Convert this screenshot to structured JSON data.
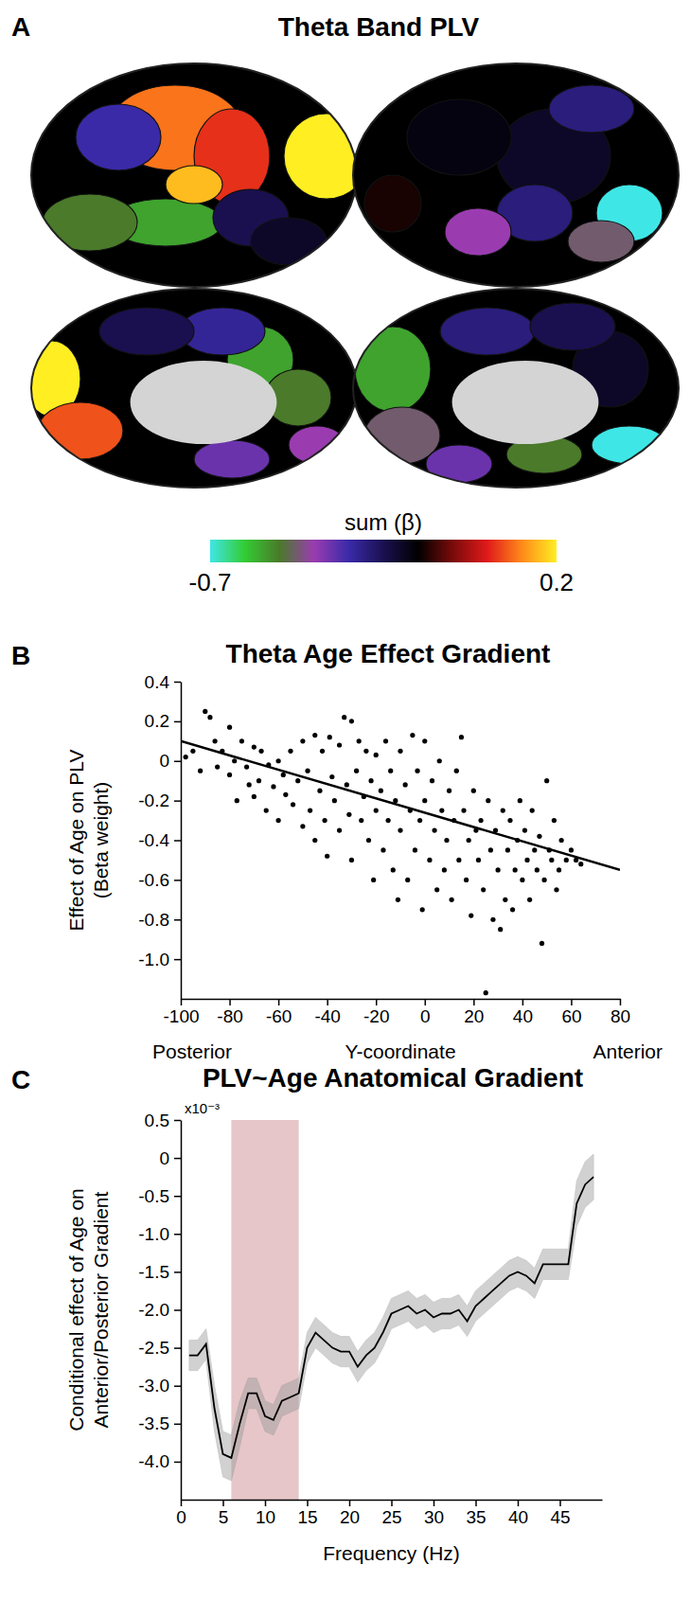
{
  "chart_data": [
    {
      "type": "map",
      "panel": "A",
      "title": "Theta Band PLV",
      "colorbar_label": "sum (β)",
      "colorbar_range": [
        -0.7,
        0.2
      ],
      "colorbar_ticks": [
        -0.7,
        0.2
      ],
      "colorbar_colors": [
        "#3fe6e6",
        "#33cc33",
        "#4a7a2a",
        "#9a3cb0",
        "#3a2aa8",
        "#1a1050",
        "#000000",
        "#7a0a0a",
        "#e01a1a",
        "#ff8a1a",
        "#ffee22"
      ]
    },
    {
      "type": "scatter",
      "panel": "B",
      "title": "Theta Age Effect Gradient",
      "xlabel": "Y-coordinate",
      "annotations": [
        "Posterior",
        "Anterior"
      ],
      "ylabel": [
        "Effect of Age on PLV",
        "(Beta weight)"
      ],
      "xlim": [
        -100,
        80
      ],
      "xticks": [
        -100,
        -80,
        -60,
        -40,
        -20,
        0,
        20,
        40,
        60,
        80
      ],
      "ylim": [
        -1.2,
        0.4
      ],
      "yticks": [
        0.4,
        0.2,
        0,
        -0.2,
        -0.4,
        -0.6,
        -0.8,
        {
          "value": -1,
          "label": "-1.0"
        }
      ],
      "grid": false,
      "series": [
        {
          "type": "scatter",
          "marker": "circle",
          "color": "#000000",
          "x": [
            -98,
            -95,
            -92,
            -90,
            -88,
            -86,
            -85,
            -83,
            -80,
            -80,
            -78,
            -77,
            -75,
            -73,
            -72,
            -70,
            -70,
            -68,
            -67,
            -65,
            -64,
            -62,
            -60,
            -60,
            -58,
            -57,
            -55,
            -54,
            -52,
            -50,
            -50,
            -48,
            -47,
            -45,
            -45,
            -43,
            -42,
            -41,
            -40,
            -39,
            -38,
            -37,
            -35,
            -35,
            -33,
            -32,
            -31,
            -30,
            -30,
            -28,
            -27,
            -26,
            -25,
            -24,
            -23,
            -22,
            -21,
            -20,
            -20,
            -18,
            -17,
            -16,
            -15,
            -14,
            -13,
            -12,
            -11,
            -10,
            -10,
            -8,
            -7,
            -6,
            -5,
            -4,
            -3,
            -2,
            -1,
            0,
            0,
            2,
            3,
            4,
            5,
            6,
            7,
            8,
            9,
            10,
            11,
            12,
            13,
            14,
            15,
            16,
            17,
            18,
            19,
            20,
            21,
            22,
            23,
            24,
            25,
            26,
            27,
            28,
            29,
            30,
            31,
            32,
            33,
            34,
            35,
            36,
            37,
            38,
            39,
            40,
            41,
            42,
            43,
            44,
            45,
            46,
            47,
            48,
            49,
            50,
            51,
            52,
            53,
            54,
            55,
            56,
            58,
            60,
            62,
            64
          ],
          "values": [
            0.02,
            0.05,
            -0.05,
            0.25,
            0.22,
            0.1,
            -0.03,
            0.05,
            0.17,
            -0.07,
            0.0,
            -0.2,
            0.1,
            -0.03,
            -0.12,
            0.07,
            -0.18,
            -0.1,
            0.05,
            -0.25,
            -0.02,
            -0.13,
            0.0,
            -0.3,
            -0.07,
            -0.17,
            0.05,
            -0.22,
            -0.1,
            -0.33,
            0.1,
            -0.05,
            -0.25,
            0.13,
            -0.4,
            -0.15,
            0.05,
            -0.3,
            -0.48,
            0.12,
            -0.08,
            -0.2,
            0.08,
            -0.35,
            0.22,
            -0.12,
            -0.27,
            0.2,
            -0.5,
            -0.05,
            0.1,
            -0.3,
            -0.18,
            0.05,
            -0.4,
            -0.1,
            -0.6,
            0.03,
            -0.25,
            -0.15,
            -0.45,
            0.1,
            -0.3,
            -0.05,
            -0.55,
            -0.2,
            -0.7,
            0.05,
            -0.35,
            -0.12,
            -0.6,
            -0.25,
            0.13,
            -0.45,
            -0.05,
            -0.3,
            -0.75,
            0.1,
            -0.2,
            -0.5,
            -0.1,
            -0.35,
            -0.65,
            0.0,
            -0.25,
            -0.55,
            -0.4,
            -0.15,
            -0.7,
            -0.3,
            -0.05,
            -0.5,
            0.12,
            -0.25,
            -0.6,
            -0.4,
            -0.78,
            -0.15,
            -0.35,
            -0.5,
            -0.3,
            -0.65,
            -1.17,
            -0.2,
            -0.45,
            -0.8,
            -0.35,
            -0.55,
            -0.85,
            -0.25,
            -0.7,
            -0.45,
            -0.3,
            -0.75,
            -0.55,
            -0.4,
            -0.2,
            -0.6,
            -0.35,
            -0.5,
            -0.7,
            -0.25,
            -0.45,
            -0.55,
            -0.38,
            -0.92,
            -0.6,
            -0.1,
            -0.45,
            -0.5,
            -0.3,
            -0.65,
            -0.55,
            -0.4,
            -0.5,
            -0.45,
            -0.5,
            -0.52
          ]
        },
        {
          "type": "line",
          "line_style": "solid",
          "color": "#000000",
          "x": [
            -100,
            80
          ],
          "values": [
            0.1,
            -0.55
          ]
        }
      ]
    },
    {
      "type": "line",
      "panel": "C",
      "title": "PLV~Age Anatomical Gradient",
      "xlabel": "Frequency (Hz)",
      "ylabel": [
        "Conditional effect of Age on",
        "Anterior/Posterior Gradient"
      ],
      "ylabel_multiplier": "x10⁻³",
      "xlim": [
        0,
        50
      ],
      "xticks": [
        0,
        5,
        10,
        15,
        20,
        25,
        30,
        35,
        40,
        45
      ],
      "ylim": [
        -4.5,
        0.5
      ],
      "yticks": [
        0.5,
        0,
        -0.5,
        {
          "value": -1,
          "label": "-1.0"
        },
        -1.5,
        {
          "value": -2,
          "label": "-2.0"
        },
        -2.5,
        {
          "value": -3,
          "label": "-3.0"
        },
        -3.5,
        {
          "value": -4,
          "label": "-4.0"
        }
      ],
      "grid": false,
      "highlight_x": [
        6,
        14
      ],
      "highlight_color": "#ddb3b6",
      "x": [
        1,
        2,
        3,
        4,
        5,
        6,
        7,
        8,
        9,
        10,
        11,
        12,
        13,
        14,
        15,
        16,
        17,
        18,
        19,
        20,
        21,
        22,
        23,
        24,
        25,
        26,
        27,
        28,
        29,
        30,
        31,
        32,
        33,
        34,
        35,
        36,
        37,
        38,
        39,
        40,
        41,
        42,
        43,
        44,
        45,
        46,
        47,
        48,
        49
      ],
      "series": [
        {
          "color": "#000000",
          "line_style": "solid",
          "values": [
            -2.6,
            -2.6,
            -2.45,
            -3.3,
            -3.9,
            -3.95,
            -3.5,
            -3.1,
            -3.1,
            -3.4,
            -3.45,
            -3.2,
            -3.15,
            -3.1,
            -2.5,
            -2.3,
            -2.4,
            -2.5,
            -2.55,
            -2.55,
            -2.75,
            -2.6,
            -2.5,
            -2.3,
            -2.05,
            -2.0,
            -1.95,
            -2.05,
            -2.0,
            -2.1,
            -2.05,
            -2.05,
            -2.0,
            -2.15,
            -1.95,
            -1.85,
            -1.75,
            -1.65,
            -1.55,
            -1.5,
            -1.55,
            -1.65,
            -1.4,
            -1.4,
            -1.4,
            -1.4,
            -0.6,
            -0.35,
            -0.25
          ],
          "errors": [
            0.2,
            0.2,
            0.2,
            0.3,
            0.3,
            0.3,
            0.3,
            0.2,
            0.2,
            0.2,
            0.2,
            0.2,
            0.2,
            0.2,
            0.2,
            0.2,
            0.2,
            0.2,
            0.2,
            0.2,
            0.2,
            0.2,
            0.2,
            0.2,
            0.2,
            0.2,
            0.2,
            0.2,
            0.2,
            0.2,
            0.2,
            0.2,
            0.2,
            0.2,
            0.2,
            0.2,
            0.2,
            0.2,
            0.2,
            0.2,
            0.2,
            0.2,
            0.2,
            0.2,
            0.2,
            0.2,
            0.3,
            0.3,
            0.3
          ]
        }
      ]
    }
  ]
}
